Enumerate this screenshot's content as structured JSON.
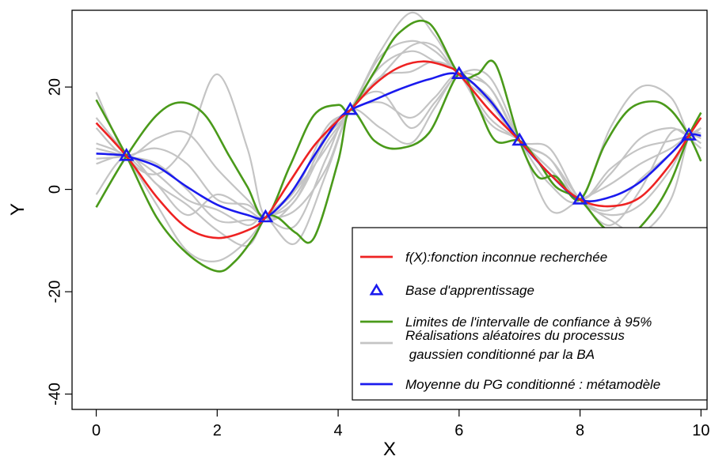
{
  "chart_data": {
    "type": "line",
    "title": "",
    "xlabel": "X",
    "ylabel": "Y",
    "xlim": [
      -0.4,
      10.1
    ],
    "ylim": [
      -43,
      35
    ],
    "x_ticks": [
      "0",
      "2",
      "4",
      "6",
      "8",
      "10"
    ],
    "y_ticks": [
      "-40",
      "-20",
      "0",
      "20"
    ],
    "grid": false,
    "legend_position": "bottom-right",
    "colors": {
      "true_function": "#ee2222",
      "training_points": "#1a1aee",
      "confidence_limits": "#4a9a1a",
      "realizations": "#c4c4c4",
      "mean": "#1a1aee",
      "frame": "#000000"
    },
    "training_points": {
      "name": "Base d'apprentissage",
      "x": [
        0.5,
        2.8,
        4.2,
        6.0,
        7.0,
        8.0,
        9.8
      ],
      "y": [
        6.5,
        -5.5,
        15.5,
        22.5,
        9.5,
        -2.0,
        10.5
      ]
    },
    "series": [
      {
        "name": "f(X):fonction inconnue recherchée",
        "color": "#ee2222",
        "x": [
          0,
          0.5,
          1.0,
          1.5,
          2.0,
          2.5,
          2.8,
          3.2,
          3.6,
          4.0,
          4.2,
          4.6,
          5.0,
          5.4,
          5.8,
          6.0,
          6.5,
          7.0,
          7.5,
          8.0,
          8.5,
          9.0,
          9.5,
          9.8,
          10
        ],
        "y": [
          13,
          6.5,
          -1.5,
          -7.5,
          -9.5,
          -8,
          -5.5,
          1.5,
          8.5,
          13.5,
          15.5,
          20.5,
          23.8,
          25,
          24,
          22.5,
          15.5,
          9.5,
          3,
          -2,
          -3.3,
          -1.5,
          5,
          10.5,
          14
        ]
      },
      {
        "name": "Moyenne du PG conditionné : métamodèle",
        "color": "#1a1aee",
        "x": [
          0,
          0.3,
          0.5,
          1.0,
          1.5,
          2.0,
          2.5,
          2.8,
          3.2,
          3.6,
          4.0,
          4.2,
          4.6,
          5.0,
          5.5,
          6.0,
          6.5,
          7.0,
          7.5,
          8.0,
          8.5,
          9.0,
          9.5,
          9.8,
          10
        ],
        "y": [
          7,
          6.8,
          6.5,
          4.5,
          0.5,
          -3,
          -5,
          -5.5,
          -1,
          6.5,
          13.5,
          15.5,
          17.5,
          19.5,
          21.5,
          22.5,
          17.5,
          9.5,
          3,
          -2,
          -1.5,
          1.5,
          7,
          10.5,
          10.5
        ]
      },
      {
        "name": "Limites de l'intervalle de confiance à 95%",
        "color": "#4a9a1a",
        "lines": [
          {
            "x": [
              0,
              0.5,
              1.0,
              1.4,
              1.8,
              2.2,
              2.5,
              2.8,
              3.2,
              3.6,
              4.0,
              4.2,
              4.6,
              5.0,
              5.5,
              6.0,
              6.3,
              6.6,
              7.0,
              7.3,
              7.6,
              8.0,
              8.4,
              8.8,
              9.2,
              9.5,
              9.8,
              10
            ],
            "y": [
              -3.5,
              6.5,
              14.5,
              17,
              14.5,
              6.5,
              0.5,
              -5.5,
              4.5,
              14.5,
              16.5,
              15.5,
              23,
              30.5,
              32.5,
              22.5,
              22.5,
              24.5,
              9.5,
              2.5,
              2.5,
              -2.0,
              8.5,
              15.5,
              17.2,
              15.5,
              10.5,
              5.5
            ]
          },
          {
            "x": [
              0,
              0.5,
              1.0,
              1.5,
              2.0,
              2.3,
              2.6,
              2.8,
              3.0,
              3.3,
              3.6,
              4.0,
              4.2,
              4.6,
              5.0,
              5.5,
              6.0,
              6.3,
              6.6,
              7.0,
              7.3,
              7.6,
              8.0,
              8.4,
              8.8,
              9.2,
              9.5,
              9.8,
              10
            ],
            "y": [
              17.5,
              6.5,
              -5.5,
              -12.5,
              -16,
              -14,
              -9.5,
              -5.5,
              -5.5,
              -8.5,
              -9.5,
              5.5,
              15.5,
              9.5,
              8,
              11,
              22.5,
              16.5,
              9.5,
              9.5,
              5.5,
              0.5,
              -2.0,
              -7.5,
              -9,
              -4.5,
              1.5,
              10.5,
              15
            ]
          }
        ]
      },
      {
        "name": "Réalisations aléatoires du processus\n gaussien conditionné par la BA",
        "color": "#c4c4c4",
        "lines": [
          {
            "x": [
              0,
              0.5,
              1.0,
              1.5,
              2.0,
              2.5,
              2.8,
              3.3,
              3.8,
              4.2,
              4.7,
              5.2,
              5.6,
              6.0,
              6.5,
              7.0,
              7.5,
              8.0,
              8.5,
              9.0,
              9.5,
              9.8,
              10
            ],
            "y": [
              19,
              6.5,
              3,
              9,
              22.5,
              8,
              -5.5,
              -2,
              9,
              15.5,
              27,
              34.5,
              30,
              22.5,
              17,
              9.5,
              4,
              -2,
              -4,
              2,
              7,
              10.5,
              12
            ]
          },
          {
            "x": [
              0,
              0.5,
              1.0,
              1.5,
              2.0,
              2.5,
              2.8,
              3.3,
              3.8,
              4.2,
              4.7,
              5.2,
              5.6,
              6.0,
              6.5,
              7.0,
              7.5,
              8.0,
              8.5,
              9.0,
              9.5,
              9.8,
              10
            ],
            "y": [
              -1,
              6.5,
              1,
              -3,
              -8,
              -11,
              -5.5,
              0,
              8,
              15.5,
              24,
              27,
              25,
              22.5,
              13,
              9.5,
              3,
              -2,
              -6,
              -8.5,
              -2,
              10.5,
              14
            ]
          },
          {
            "x": [
              0,
              0.5,
              1.0,
              1.5,
              2.0,
              2.5,
              2.8,
              3.3,
              3.8,
              4.2,
              4.7,
              5.2,
              5.6,
              6.0,
              6.5,
              7.0,
              7.5,
              8.0,
              8.5,
              9.0,
              9.5,
              9.8,
              10
            ],
            "y": [
              12,
              6.5,
              10,
              11,
              4,
              -2,
              -5.5,
              -7,
              6,
              15.5,
              12,
              9,
              16,
              22.5,
              20,
              9.5,
              6,
              -2,
              4,
              8,
              9.5,
              10.5,
              12
            ]
          },
          {
            "x": [
              0,
              0.5,
              1.0,
              1.5,
              2.0,
              2.5,
              2.8,
              3.3,
              3.8,
              4.2,
              4.7,
              5.2,
              5.6,
              6.0,
              6.5,
              7.0,
              7.5,
              8.0,
              8.5,
              9.0,
              9.5,
              9.8,
              10
            ],
            "y": [
              5,
              6.5,
              3,
              -2,
              -4,
              -7,
              -5.5,
              -10.5,
              3,
              15.5,
              22,
              28,
              28,
              22.5,
              20,
              9.5,
              1,
              -2,
              12,
              20,
              18,
              10.5,
              8
            ]
          },
          {
            "x": [
              0,
              0.5,
              1.0,
              1.5,
              2.0,
              2.5,
              2.8,
              3.3,
              3.8,
              4.2,
              4.7,
              5.2,
              5.6,
              6.0,
              6.5,
              7.0,
              7.5,
              8.0,
              8.5,
              9.0,
              9.5,
              9.8,
              10
            ],
            "y": [
              8,
              6.5,
              5,
              0,
              -6,
              -6,
              -5.5,
              -2,
              11,
              15.5,
              17,
              14,
              18,
              22.5,
              17,
              9.5,
              8,
              -2,
              -5,
              -3,
              4,
              10.5,
              11
            ]
          },
          {
            "x": [
              0,
              0.5,
              1.0,
              1.5,
              2.0,
              2.5,
              2.8,
              3.3,
              3.8,
              4.2,
              4.7,
              5.2,
              5.6,
              6.0,
              6.5,
              7.0,
              7.5,
              8.0,
              8.5,
              9.0,
              9.5,
              9.8,
              10
            ],
            "y": [
              14,
              6.5,
              -3,
              -12,
              -14,
              -10,
              -5.5,
              0,
              12,
              15.5,
              22,
              23,
              25,
              22.5,
              14,
              9.5,
              4,
              -2,
              3,
              10,
              12,
              10.5,
              12
            ]
          },
          {
            "x": [
              0,
              0.5,
              1.0,
              1.5,
              2.0,
              2.5,
              2.8,
              3.3,
              3.8,
              4.2,
              4.7,
              5.2,
              5.6,
              6.0,
              6.5,
              7.0,
              7.5,
              8.0,
              8.5,
              9.0,
              9.5,
              9.8,
              10
            ],
            "y": [
              6,
              6.5,
              8,
              5,
              -2,
              -3,
              -5.5,
              -4,
              4,
              15.5,
              19,
              12,
              17,
              22.5,
              22,
              9.5,
              -4,
              -2,
              1,
              5,
              8,
              10.5,
              10
            ]
          },
          {
            "x": [
              0,
              0.5,
              1.0,
              1.5,
              2.0,
              2.5,
              2.8,
              3.3,
              3.8,
              4.2,
              4.7,
              5.2,
              5.6,
              6.0,
              6.5,
              7.0,
              7.5,
              8.0,
              8.5,
              9.0,
              9.5,
              9.8,
              10
            ],
            "y": [
              9,
              6.5,
              1,
              -5,
              -1,
              -4,
              -5.5,
              -1,
              10,
              15.5,
              26,
              29,
              27,
              22.5,
              18,
              9.5,
              6,
              -2,
              -7,
              0,
              11,
              10.5,
              9
            ]
          }
        ]
      }
    ],
    "legend": [
      {
        "label": "f(X):fonction inconnue recherchée",
        "symbol": "line",
        "color": "#ee2222"
      },
      {
        "label": "Base d'apprentissage",
        "symbol": "triangle",
        "color": "#1a1aee"
      },
      {
        "label": "Limites de l'intervalle de confiance à 95%",
        "symbol": "line",
        "color": "#4a9a1a"
      },
      {
        "label": "Réalisations aléatoires du processus",
        "label2": " gaussien conditionné par la BA",
        "symbol": "line",
        "color": "#c4c4c4"
      },
      {
        "label": "Moyenne du PG conditionné : métamodèle",
        "symbol": "line",
        "color": "#1a1aee"
      }
    ]
  }
}
